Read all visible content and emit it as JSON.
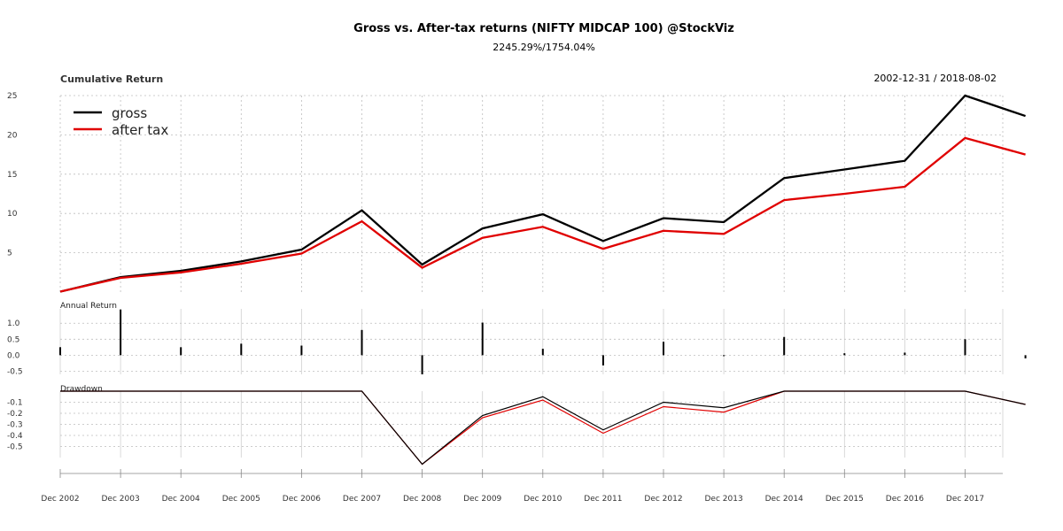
{
  "chart_data": {
    "type": "line",
    "title": "Gross vs. After-tax returns (NIFTY MIDCAP 100) @StockViz",
    "subtitle": "2245.29%/1754.04%",
    "date_range": "2002-12-31 / 2018-08-02",
    "x": [
      "Dec 2002",
      "Dec 2003",
      "Dec 2004",
      "Dec 2005",
      "Dec 2006",
      "Dec 2007",
      "Dec 2008",
      "Dec 2009",
      "Dec 2010",
      "Dec 2011",
      "Dec 2012",
      "Dec 2013",
      "Dec 2014",
      "Dec 2015",
      "Dec 2016",
      "Dec 2017",
      "Aug 2018"
    ],
    "x_tick_labels": [
      "Dec 2002",
      "Dec 2003",
      "Dec 2004",
      "Dec 2005",
      "Dec 2006",
      "Dec 2007",
      "Dec 2008",
      "Dec 2009",
      "Dec 2010",
      "Dec 2011",
      "Dec 2012",
      "Dec 2013",
      "Dec 2014",
      "Dec 2015",
      "Dec 2016",
      "Dec 2017"
    ],
    "colors": {
      "gross": "#000000",
      "after_tax": "#e00000"
    },
    "legend_placement": "top-left",
    "grid": true,
    "panels": [
      {
        "label": "Cumulative Return",
        "ylim": [
          0,
          25
        ],
        "yticks": [
          5,
          10,
          15,
          20,
          25
        ],
        "series": [
          {
            "name": "gross",
            "values": [
              0.05,
              1.9,
              2.7,
              3.9,
              5.4,
              10.4,
              3.5,
              8.1,
              9.9,
              6.5,
              9.4,
              8.9,
              14.5,
              15.6,
              16.7,
              25.0,
              22.4
            ]
          },
          {
            "name": "after tax",
            "values": [
              0.05,
              1.8,
              2.5,
              3.6,
              4.9,
              9.0,
              3.1,
              6.9,
              8.3,
              5.5,
              7.8,
              7.4,
              11.7,
              12.5,
              13.4,
              19.6,
              17.5
            ]
          }
        ]
      },
      {
        "label": "Annual Return",
        "ylim": [
          -0.6,
          1.45
        ],
        "yticks": [
          -0.5,
          0.0,
          0.5,
          1.0
        ],
        "ytick_labels": [
          "-0.5",
          "0.0",
          "0.5",
          "1.0"
        ],
        "values": [
          0.25,
          1.43,
          0.25,
          0.36,
          0.3,
          0.79,
          -0.6,
          1.02,
          0.2,
          -0.32,
          0.42,
          -0.03,
          0.57,
          0.06,
          0.08,
          0.5,
          -0.1
        ]
      },
      {
        "label": "Drawdown",
        "ylim": [
          -0.6,
          0.0
        ],
        "yticks": [
          -0.5,
          -0.4,
          -0.3,
          -0.2,
          -0.1
        ],
        "ytick_labels": [
          "-0.5",
          "-0.4",
          "-0.3",
          "-0.2",
          "-0.1"
        ],
        "series": [
          {
            "name": "gross",
            "values": [
              0.0,
              0.0,
              0.0,
              0.0,
              0.0,
              0.0,
              -0.66,
              -0.22,
              -0.05,
              -0.35,
              -0.1,
              -0.15,
              0.0,
              0.0,
              0.0,
              0.0,
              -0.12
            ]
          },
          {
            "name": "after tax",
            "values": [
              0.0,
              0.0,
              0.0,
              0.0,
              0.0,
              0.0,
              -0.66,
              -0.24,
              -0.08,
              -0.38,
              -0.14,
              -0.19,
              0.0,
              0.0,
              0.0,
              0.0,
              -0.12
            ]
          }
        ]
      }
    ]
  }
}
